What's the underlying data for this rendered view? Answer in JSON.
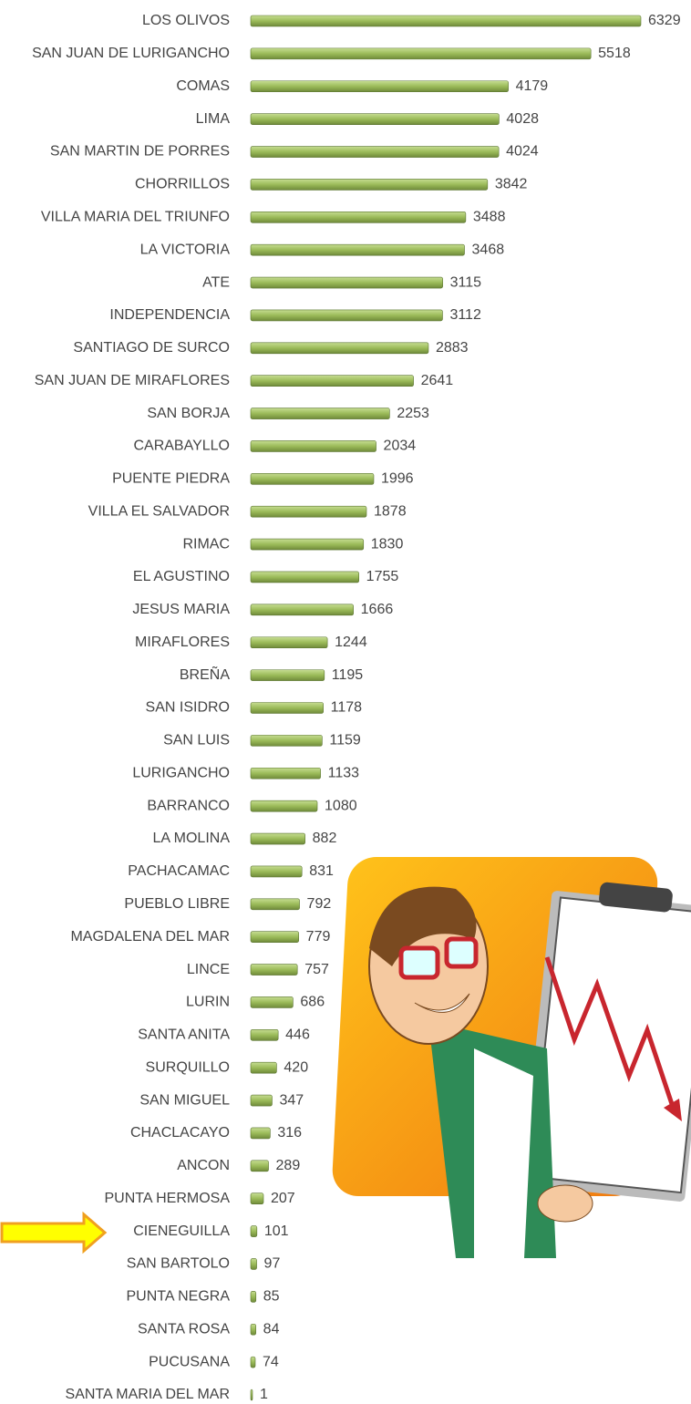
{
  "chart_data": {
    "type": "bar",
    "orientation": "horizontal",
    "color": "#9bbb59",
    "categories": [
      "LOS OLIVOS",
      "SAN JUAN DE LURIGANCHO",
      "COMAS",
      "LIMA",
      "SAN MARTIN DE PORRES",
      "CHORRILLOS",
      "VILLA MARIA DEL TRIUNFO",
      "LA VICTORIA",
      "ATE",
      "INDEPENDENCIA",
      "SANTIAGO DE SURCO",
      "SAN JUAN DE MIRAFLORES",
      "SAN BORJA",
      "CARABAYLLO",
      "PUENTE PIEDRA",
      "VILLA EL SALVADOR",
      "RIMAC",
      "EL AGUSTINO",
      "JESUS MARIA",
      "MIRAFLORES",
      "BREÑA",
      "SAN ISIDRO",
      "SAN LUIS",
      "LURIGANCHO",
      "BARRANCO",
      "LA MOLINA",
      "PACHACAMAC",
      "PUEBLO LIBRE",
      "MAGDALENA DEL MAR",
      "LINCE",
      "LURIN",
      "SANTA ANITA",
      "SURQUILLO",
      "SAN MIGUEL",
      "CHACLACAYO",
      "ANCON",
      "PUNTA HERMOSA",
      "CIENEGUILLA",
      "SAN BARTOLO",
      "PUNTA NEGRA",
      "SANTA ROSA",
      "PUCUSANA",
      "SANTA MARIA DEL MAR"
    ],
    "values": [
      6329,
      5518,
      4179,
      4028,
      4024,
      3842,
      3488,
      3468,
      3115,
      3112,
      2883,
      2641,
      2253,
      2034,
      1996,
      1878,
      1830,
      1755,
      1666,
      1244,
      1195,
      1178,
      1159,
      1133,
      1080,
      882,
      831,
      792,
      779,
      757,
      686,
      446,
      420,
      347,
      316,
      289,
      207,
      101,
      97,
      85,
      84,
      74,
      1
    ]
  }
}
